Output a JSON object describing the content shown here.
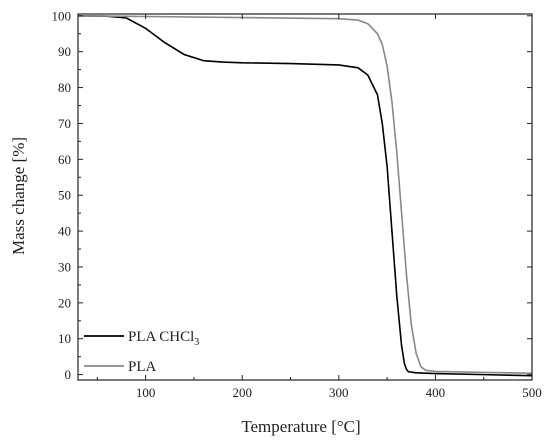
{
  "chart_data": {
    "type": "line",
    "xlabel": "Temperature [°C]",
    "ylabel": "Mass change [%]",
    "xlim": [
      30,
      500
    ],
    "ylim": [
      -1.5,
      100.5
    ],
    "xticks": [
      100,
      200,
      300,
      400,
      500
    ],
    "xtick_labels": [
      "100",
      "200",
      "300",
      "400",
      "500"
    ],
    "yticks": [
      0,
      10,
      20,
      30,
      40,
      50,
      60,
      70,
      80,
      90,
      100
    ],
    "ytick_labels": [
      "0",
      "10",
      "20",
      "30",
      "40",
      "50",
      "60",
      "70",
      "80",
      "90",
      "100"
    ],
    "legend_position": "bottom-left",
    "series": [
      {
        "name": "PLA CHCl3",
        "legend_main": "PLA CHCl",
        "legend_sub": "3",
        "color": "#000000",
        "x": [
          30,
          60,
          80,
          100,
          120,
          140,
          160,
          180,
          200,
          250,
          300,
          320,
          330,
          340,
          345,
          350,
          355,
          360,
          365,
          368,
          370,
          372,
          380,
          400,
          450,
          500
        ],
        "y": [
          100,
          99.9,
          99.4,
          96.5,
          92.5,
          89.2,
          87.5,
          87.1,
          86.9,
          86.7,
          86.3,
          85.5,
          83.5,
          78,
          70,
          58,
          40,
          22,
          8,
          3,
          1.5,
          0.8,
          0.5,
          0.3,
          0.0,
          -0.3
        ]
      },
      {
        "name": "PLA",
        "legend_main": "PLA",
        "legend_sub": "",
        "color": "#888888",
        "x": [
          30,
          100,
          200,
          300,
          320,
          330,
          340,
          345,
          350,
          355,
          360,
          365,
          370,
          375,
          380,
          385,
          390,
          400,
          450,
          500
        ],
        "y": [
          100,
          99.8,
          99.5,
          99.2,
          98.8,
          97.8,
          95,
          92,
          86,
          76,
          62,
          45,
          28,
          14,
          6,
          2.2,
          1.2,
          0.9,
          0.6,
          0.4
        ]
      }
    ]
  }
}
